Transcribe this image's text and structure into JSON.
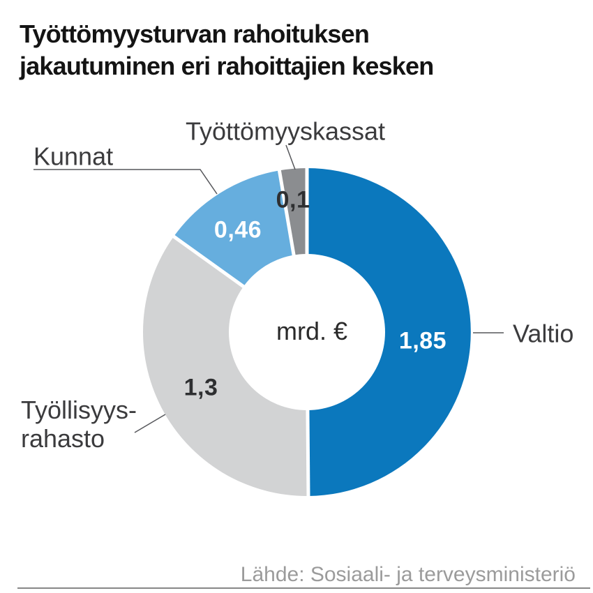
{
  "title": {
    "line1": "Työttömyysturvan rahoituksen",
    "line2": "jakautuminen eri rahoittajien kesken"
  },
  "center_label": "mrd. €",
  "source": "Lähde: Sosiaali- ja terveysministeriö",
  "callouts": {
    "tyottomyyskassat": "Työttömyyskassat",
    "kunnat": "Kunnat",
    "valtio": "Valtio",
    "tyollisyysrahasto_line1": "Työllisyys-",
    "tyollisyysrahasto_line2": "rahasto"
  },
  "chart_data": {
    "type": "pie",
    "subtype": "donut",
    "title": "Työttömyysturvan rahoituksen jakautuminen eri rahoittajien kesken",
    "unit": "mrd. €",
    "categories": [
      "Valtio",
      "Työllisyysrahasto",
      "Kunnat",
      "Työttömyyskassat"
    ],
    "values": [
      1.85,
      1.3,
      0.46,
      0.1
    ],
    "value_labels": [
      "1,85",
      "1,3",
      "0,46",
      "0,1"
    ],
    "total": 3.71,
    "colors": [
      "#0b78bd",
      "#d2d3d4",
      "#66aede",
      "#8b8d90"
    ],
    "value_label_colors": [
      "#ffffff",
      "#2e2f31",
      "#ffffff",
      "#2e2f31"
    ],
    "separator_color": "#ffffff",
    "leader_line_color": "#55565a",
    "start_angle_deg": 0,
    "direction": "clockwise",
    "legend_position": "outside-callouts"
  }
}
